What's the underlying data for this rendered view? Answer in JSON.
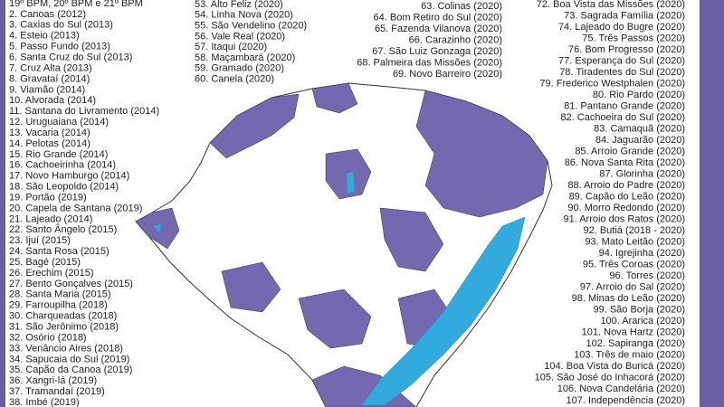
{
  "left_list": [
    "19º BPM, 20º BPM e 21º BPM",
    "2. Canoas (2012)",
    "3. Caxias do Sul (2013)",
    "4. Esteio (2013)",
    "5. Passo Fundo (2013)",
    "6. Santa Cruz do Sul (2013)",
    "7. Cruz Alta (2013)",
    "8. Gravataí (2014)",
    "9. Viamão (2014)",
    "10. Alvorada (2014)",
    "11. Santana do Livramento (2014)",
    "12. Uruguaiana (2014)",
    "13. Vacaria (2014)",
    "14. Pelotas (2014)",
    "15. Rio Grande (2014)",
    "16. Cachoeirinha (2014)",
    "17. Novo Hamburgo (2014)",
    "18. São Leopoldo (2014)",
    "19. Portão (2019)",
    "20. Capela de Santana (2019)",
    "21. Lajeado (2014)",
    "22. Santo Ângelo (2015)",
    "23. Ijuí (2015)",
    "24. Santa Rosa (2015)",
    "25. Bagé (2015)",
    "26. Erechim (2015)",
    "27. Bento Gonçalves (2015)",
    "28. Santa Maria (2015)",
    "29. Farroupilha (2018)",
    "30. Charqueadas (2018)",
    "31. São Jerônimo (2018)",
    "32. Osório (2018)",
    "33. Venâncio Aires (2018)",
    "34. Sapucaia do Sul (2019)",
    "35. Capão da Canoa (2019)",
    "36. Xangri-lá (2019)",
    "37. Tramandaí (2019)",
    "38. Imbé (2019)"
  ],
  "middle_list_1": [
    "53. Alto Feliz (2020)",
    "54. Linha Nova (2020)",
    "55. São Vendelino (2020)",
    "56. Vale Real (2020)",
    "57. Itaqui (2020)",
    "58. Maçambará (2020)",
    "59. Gramado (2020)",
    "60. Canela (2020)"
  ],
  "middle_list_2": [
    "63. Colinas (2020)",
    "64. Bom Retiro do Sul (2020)",
    "65. Fazenda Vilanova (2020)",
    "66. Carazinho (2020)",
    "67. São Luiz Gonzaga (2020)",
    "68. Palmeira das Missões (2020)",
    "69. Novo Barreiro (2020)"
  ],
  "right_list": [
    "72. Boa Vista das Missões (2020)",
    "73. Sagrada Família (2020)",
    "74. Lajeado do Bugre (2020)",
    "75. Três Passos (2020)",
    "76. Bom Progresso (2020)",
    "77. Esperança do Sul (2020)",
    "78. Tiradentes do Sul (2020)",
    "79. Frederico Westphalen (2020)",
    "80. Rio Pardo (2020)",
    "81. Pantano Grande (2020)",
    "82. Cachoeira do Sul (2020)",
    "83. Camaquã (2020)",
    "84. Jaguarão (2020)",
    "85. Arroio Grande (2020)",
    "86. Nova Santa Rita (2020)",
    "87. Glorinha (2020)",
    "88. Arroio do Padre (2020)",
    "89. Capão do Leão (2020)",
    "90. Morro Redondo (2020)",
    "91. Arroio dos Ratos (2020)",
    "92. Butiá (2018 - 2020)",
    "93. Mato Leitão (2020)",
    "94. Igrejinha (2020)",
    "95. Três Coroas (2020)",
    "96. Torres (2020)",
    "97. Arroio do Sal (2020)",
    "98. Minas do Leão (2020)",
    "99. São Borja (2020)",
    "100. Ararica (2020)",
    "101. Nova Hartz (2020)",
    "102. Sapiranga (2020)",
    "103. Três de maio (2020)",
    "104. Boa Vista do Buricá (2020)",
    "105. São José do Inhacorá (2020)",
    "106. Nova Candelária (2020)",
    "107. Independência (2020)"
  ]
}
